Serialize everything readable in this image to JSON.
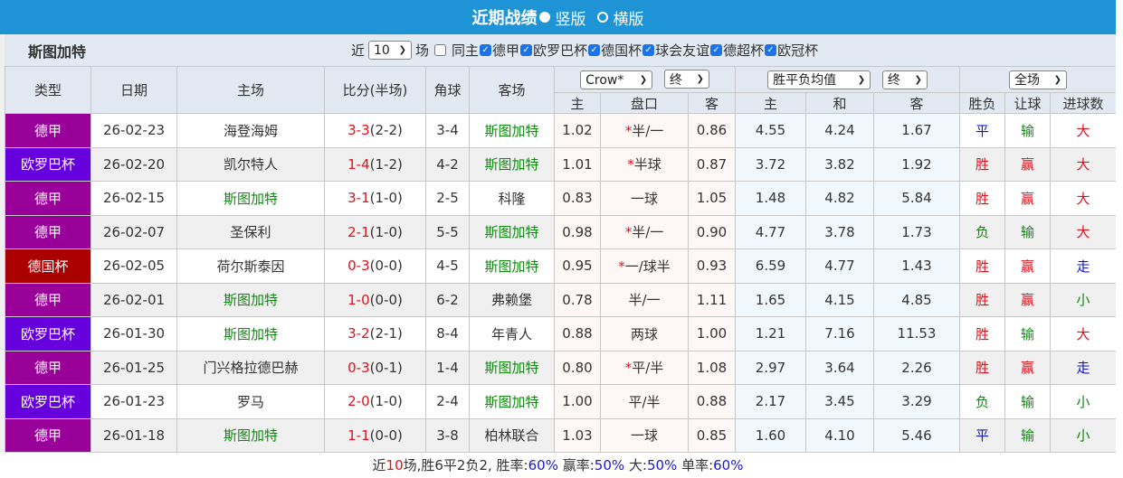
{
  "header": {
    "title": "近期战绩",
    "view_options": [
      {
        "label": "竖版",
        "selected": true
      },
      {
        "label": "横版",
        "selected": false
      }
    ]
  },
  "team": "斯图加特",
  "filters": {
    "recent_prefix": "近",
    "recent_count": "10",
    "recent_suffix": "场",
    "same_home": {
      "label": "同主",
      "checked": false
    },
    "competitions": [
      {
        "label": "德甲",
        "checked": true
      },
      {
        "label": "欧罗巴杯",
        "checked": true
      },
      {
        "label": "德国杯",
        "checked": true
      },
      {
        "label": "球会友谊",
        "checked": true
      },
      {
        "label": "德超杯",
        "checked": true
      },
      {
        "label": "欧冠杯",
        "checked": true
      }
    ]
  },
  "columns": {
    "type": "类型",
    "date": "日期",
    "home": "主场",
    "score": "比分(半场)",
    "corners": "角球",
    "away": "客场",
    "ah_company": "Crow*",
    "ah_stage": "终",
    "ox_company": "胜平负均值",
    "ox_stage": "终",
    "period": "全场",
    "ah_home": "主",
    "ah_line": "盘口",
    "ah_away": "客",
    "ox_home": "主",
    "ox_draw": "和",
    "ox_away": "客",
    "result": "胜负",
    "handicap": "让球",
    "goals": "进球数"
  },
  "colors": {
    "德甲": "#990099",
    "欧罗巴杯": "#6600dd",
    "德国杯": "#aa0000",
    "team_highlight": "#118811",
    "score": "#e0101c",
    "header_bar": "#1e94d6"
  },
  "rows": [
    {
      "type": "德甲",
      "date": "26-02-23",
      "home": "海登海姆",
      "ft": "3-3",
      "ht": "(2-2)",
      "corners": "3-4",
      "away": "斯图加特",
      "ah_home": "1.02",
      "ah_star": "*",
      "ah_line": "半/一",
      "ah_away": "0.86",
      "o1": "4.55",
      "ox": "4.24",
      "o2": "1.67",
      "result": "平",
      "handicap": "输",
      "goals": "大"
    },
    {
      "type": "欧罗巴杯",
      "date": "26-02-20",
      "home": "凯尔特人",
      "ft": "1-4",
      "ht": "(1-2)",
      "corners": "4-2",
      "away": "斯图加特",
      "ah_home": "1.01",
      "ah_star": "*",
      "ah_line": "半球",
      "ah_away": "0.87",
      "o1": "3.72",
      "ox": "3.82",
      "o2": "1.92",
      "result": "胜",
      "handicap": "赢",
      "goals": "大"
    },
    {
      "type": "德甲",
      "date": "26-02-15",
      "home": "斯图加特",
      "ft": "3-1",
      "ht": "(1-0)",
      "corners": "2-5",
      "away": "科隆",
      "ah_home": "0.83",
      "ah_star": "",
      "ah_line": "一球",
      "ah_away": "1.05",
      "o1": "1.48",
      "ox": "4.82",
      "o2": "5.84",
      "result": "胜",
      "handicap": "赢",
      "goals": "大"
    },
    {
      "type": "德甲",
      "date": "26-02-07",
      "home": "圣保利",
      "ft": "2-1",
      "ht": "(1-0)",
      "corners": "5-5",
      "away": "斯图加特",
      "ah_home": "0.98",
      "ah_star": "*",
      "ah_line": "半/一",
      "ah_away": "0.90",
      "o1": "4.77",
      "ox": "3.78",
      "o2": "1.73",
      "result": "负",
      "handicap": "输",
      "goals": "大"
    },
    {
      "type": "德国杯",
      "date": "26-02-05",
      "home": "荷尔斯泰因",
      "ft": "0-3",
      "ht": "(0-0)",
      "corners": "4-5",
      "away": "斯图加特",
      "ah_home": "0.95",
      "ah_star": "*",
      "ah_line": "一/球半",
      "ah_away": "0.93",
      "o1": "6.59",
      "ox": "4.77",
      "o2": "1.43",
      "result": "胜",
      "handicap": "赢",
      "goals": "走"
    },
    {
      "type": "德甲",
      "date": "26-02-01",
      "home": "斯图加特",
      "ft": "1-0",
      "ht": "(0-0)",
      "corners": "6-2",
      "away": "弗赖堡",
      "ah_home": "0.78",
      "ah_star": "",
      "ah_line": "半/一",
      "ah_away": "1.11",
      "o1": "1.65",
      "ox": "4.15",
      "o2": "4.85",
      "result": "胜",
      "handicap": "赢",
      "goals": "小"
    },
    {
      "type": "欧罗巴杯",
      "date": "26-01-30",
      "home": "斯图加特",
      "ft": "3-2",
      "ht": "(2-1)",
      "corners": "8-4",
      "away": "年青人",
      "ah_home": "0.88",
      "ah_star": "",
      "ah_line": "两球",
      "ah_away": "1.00",
      "o1": "1.21",
      "ox": "7.16",
      "o2": "11.53",
      "result": "胜",
      "handicap": "输",
      "goals": "大"
    },
    {
      "type": "德甲",
      "date": "26-01-25",
      "home": "门兴格拉德巴赫",
      "ft": "0-3",
      "ht": "(0-1)",
      "corners": "1-4",
      "away": "斯图加特",
      "ah_home": "0.80",
      "ah_star": "*",
      "ah_line": "平/半",
      "ah_away": "1.08",
      "o1": "2.97",
      "ox": "3.64",
      "o2": "2.26",
      "result": "胜",
      "handicap": "赢",
      "goals": "走"
    },
    {
      "type": "欧罗巴杯",
      "date": "26-01-23",
      "home": "罗马",
      "ft": "2-0",
      "ht": "(1-0)",
      "corners": "2-4",
      "away": "斯图加特",
      "ah_home": "1.00",
      "ah_star": "",
      "ah_line": "平/半",
      "ah_away": "0.88",
      "o1": "2.17",
      "ox": "3.45",
      "o2": "3.29",
      "result": "负",
      "handicap": "输",
      "goals": "小"
    },
    {
      "type": "德甲",
      "date": "26-01-18",
      "home": "斯图加特",
      "ft": "1-1",
      "ht": "(0-0)",
      "corners": "3-8",
      "away": "柏林联合",
      "ah_home": "1.03",
      "ah_star": "",
      "ah_line": "一球",
      "ah_away": "0.85",
      "o1": "1.60",
      "ox": "4.10",
      "o2": "5.46",
      "result": "平",
      "handicap": "输",
      "goals": "小"
    }
  ],
  "summary": {
    "p1": "近",
    "count": "10",
    "p2": "场,胜6平2负2, 胜率:",
    "win_rate": "60%",
    "p3": " 赢率:",
    "cover_rate": "50%",
    "p4": " 大:",
    "over_rate": "50%",
    "p5": " 单率:",
    "odd_rate": "60%"
  }
}
